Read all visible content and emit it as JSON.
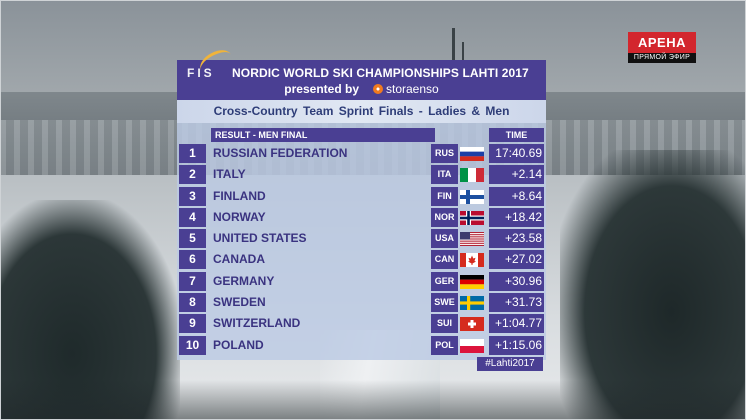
{
  "channel": {
    "name": "АРЕНА",
    "live_label": "ПРЯМОЙ ЭФИР",
    "color": "#d3262d"
  },
  "header": {
    "fis_logo": "FIS",
    "title": "NORDIC WORLD SKI CHAMPIONSHIPS LAHTI 2017",
    "presented_by": "presented by",
    "sponsor_icon": "storaenso-flower-icon",
    "sponsor": "storaenso",
    "accent_color": "#4a3f93"
  },
  "subheader": {
    "event": "Cross-Country",
    "race": "Team Sprint Finals - Ladies & Men"
  },
  "results": {
    "column_label": "RESULT - MEN FINAL",
    "time_label": "TIME",
    "rows": [
      {
        "rank": "1",
        "country": "RUSSIAN FEDERATION",
        "code": "RUS",
        "flag": "flag-rus",
        "time": "17:40.69"
      },
      {
        "rank": "2",
        "country": "ITALY",
        "code": "ITA",
        "flag": "flag-ita",
        "time": "+2.14"
      },
      {
        "rank": "3",
        "country": "FINLAND",
        "code": "FIN",
        "flag": "flag-fin",
        "time": "+8.64"
      },
      {
        "rank": "4",
        "country": "NORWAY",
        "code": "NOR",
        "flag": "flag-nor",
        "time": "+18.42"
      },
      {
        "rank": "5",
        "country": "UNITED STATES",
        "code": "USA",
        "flag": "flag-usa",
        "time": "+23.58"
      },
      {
        "rank": "6",
        "country": "CANADA",
        "code": "CAN",
        "flag": "flag-can",
        "time": "+27.02"
      },
      {
        "rank": "7",
        "country": "GERMANY",
        "code": "GER",
        "flag": "flag-ger",
        "time": "+30.96"
      },
      {
        "rank": "8",
        "country": "SWEDEN",
        "code": "SWE",
        "flag": "flag-swe",
        "time": "+31.73"
      },
      {
        "rank": "9",
        "country": "SWITZERLAND",
        "code": "SUI",
        "flag": "flag-sui",
        "time": "+1:04.77"
      },
      {
        "rank": "10",
        "country": "POLAND",
        "code": "POL",
        "flag": "flag-pol",
        "time": "+1:15.06"
      }
    ]
  },
  "hashtag": "#Lahti2017"
}
